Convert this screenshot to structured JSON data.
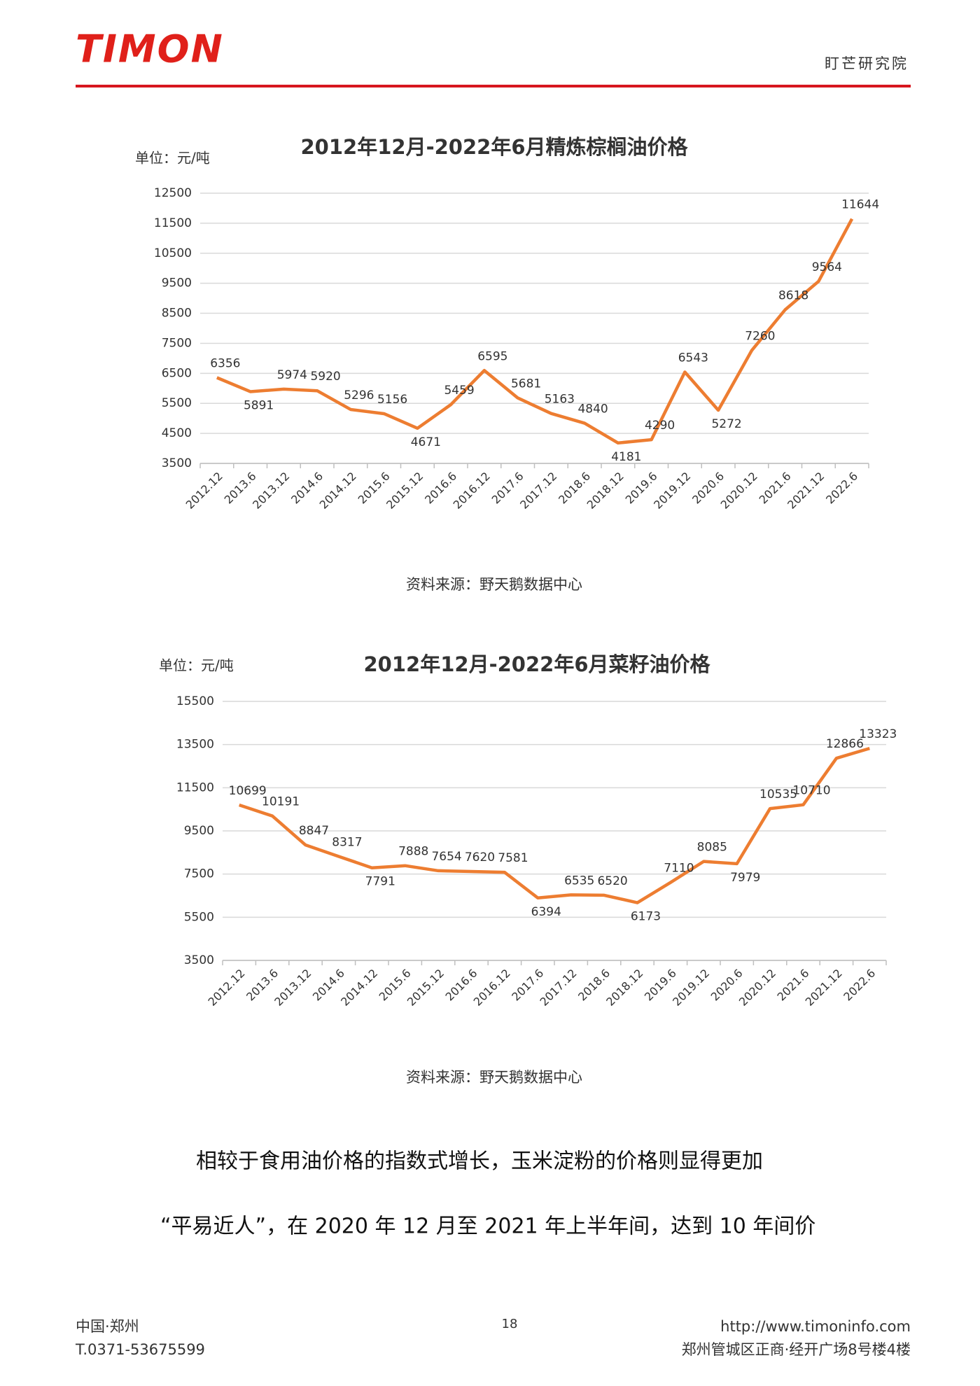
{
  "header": {
    "logo": "TIMON",
    "institute": "盯芒研究院"
  },
  "chart_data": [
    {
      "type": "line",
      "title": "2012年12月-2022年6月精炼棕榈油价格",
      "unit": "单位：元/吨",
      "source": "资料来源：野天鹅数据中心",
      "color": "#ed7d31",
      "grid": true,
      "categories": [
        "2012.12",
        "2013.6",
        "2013.12",
        "2014.6",
        "2014.12",
        "2015.6",
        "2015.12",
        "2016.6",
        "2016.12",
        "2017.6",
        "2017.12",
        "2018.6",
        "2018.12",
        "2019.6",
        "2019.12",
        "2020.6",
        "2020.12",
        "2021.6",
        "2021.12",
        "2022.6"
      ],
      "values": [
        6356,
        5891,
        5974,
        5920,
        5296,
        5156,
        4671,
        5459,
        6595,
        5681,
        5163,
        4840,
        4181,
        4290,
        6543,
        5272,
        7260,
        8618,
        9564,
        11644
      ],
      "ylim": [
        3500,
        12500
      ],
      "yticks": [
        3500,
        4500,
        5500,
        6500,
        7500,
        8500,
        9500,
        10500,
        11500,
        12500
      ]
    },
    {
      "type": "line",
      "title": "2012年12月-2022年6月菜籽油价格",
      "unit": "单位：元/吨",
      "source": "资料来源：野天鹅数据中心",
      "color": "#ed7d31",
      "grid": true,
      "categories": [
        "2012.12",
        "2013.6",
        "2013.12",
        "2014.6",
        "2014.12",
        "2015.6",
        "2015.12",
        "2016.6",
        "2016.12",
        "2017.6",
        "2017.12",
        "2018.6",
        "2018.12",
        "2019.6",
        "2019.12",
        "2020.6",
        "2020.12",
        "2021.6",
        "2021.12",
        "2022.6"
      ],
      "values": [
        10699,
        10191,
        8847,
        8317,
        7791,
        7888,
        7654,
        7620,
        7581,
        6394,
        6535,
        6520,
        6173,
        7110,
        8085,
        7979,
        10535,
        10710,
        12866,
        13323
      ],
      "ylim": [
        3500,
        15500
      ],
      "yticks": [
        3500,
        5500,
        7500,
        9500,
        11500,
        13500,
        15500
      ]
    }
  ],
  "body": {
    "lines": [
      "相较于食用油价格的指数式增长，玉米淀粉的价格则显得更加",
      "“平易近人”，在 2020 年 12 月至 2021 年上半年间，达到 10 年间价"
    ]
  },
  "footer": {
    "city": "中国·郑州",
    "phone": "T.0371-53675599",
    "page": "18",
    "url": "http://www.timoninfo.com",
    "address": "郑州管城区正商·经开广场8号楼4楼"
  }
}
